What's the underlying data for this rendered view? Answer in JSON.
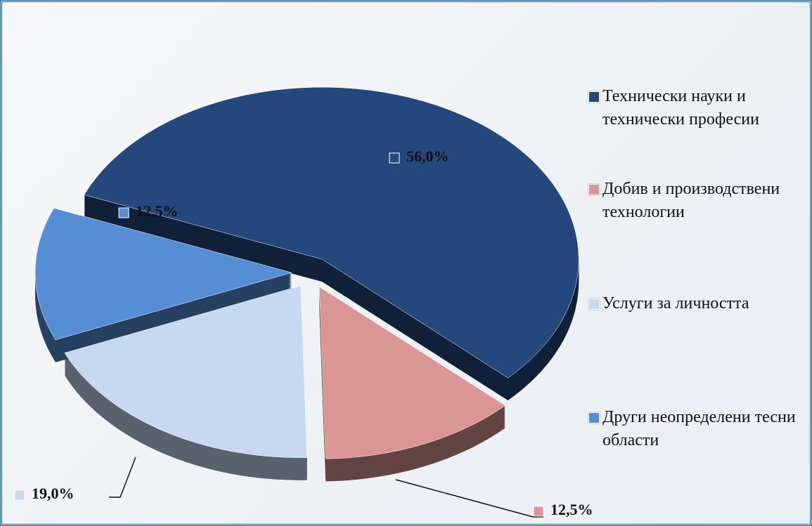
{
  "chart_data": {
    "type": "pie",
    "categories": [
      "Технически науки и технически професии",
      "Добив и производствени технологии",
      "Услуги за личността",
      "Други неопределени тесни области"
    ],
    "values": [
      56.0,
      12.5,
      19.0,
      12.5
    ],
    "value_labels": [
      "56,0%",
      "12,5%",
      "19,0%",
      "12,5%"
    ],
    "colors": [
      "#24487c",
      "#d99694",
      "#c6d9f1",
      "#558ed5"
    ]
  }
}
